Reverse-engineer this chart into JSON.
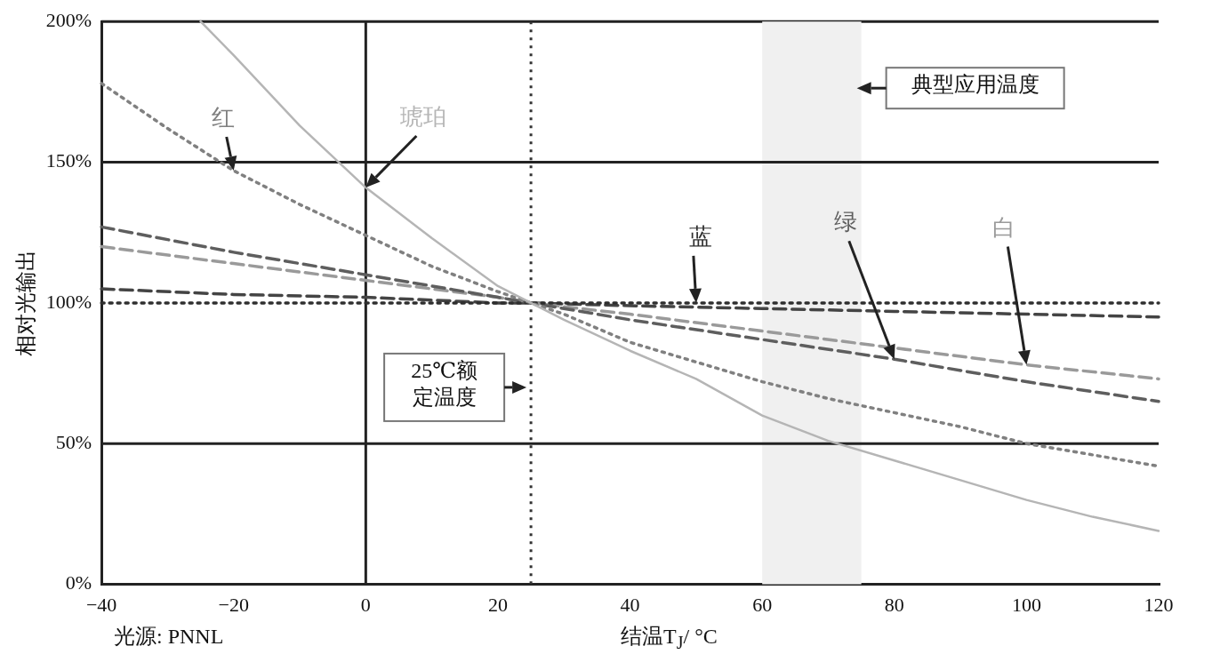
{
  "chart_data": {
    "type": "line",
    "xlabel": "结温T$_{J}$/ °C",
    "ylabel": "相对光输出",
    "xlim": [
      -40,
      120
    ],
    "xticks": [
      {
        "value": -40,
        "label": "−40"
      },
      {
        "value": -20,
        "label": "−20"
      },
      0,
      20,
      40,
      60,
      80,
      100,
      120
    ],
    "ylim": [
      0,
      200
    ],
    "yticks": [
      {
        "value": 0,
        "label": "0%"
      },
      {
        "value": 50,
        "label": "50%"
      },
      {
        "value": 100,
        "label": "100%"
      },
      {
        "value": 150,
        "label": "150%"
      },
      {
        "value": 200,
        "label": "200%"
      }
    ],
    "legend": false,
    "marker": "none",
    "series": [
      {
        "name": "琥珀",
        "color": "#b5b5b5",
        "line_style": "solid",
        "x": [
          -25,
          -20,
          -10,
          0,
          10,
          20,
          25,
          30,
          40,
          50,
          60,
          70,
          80,
          90,
          100,
          110,
          120
        ],
        "values": [
          200,
          188,
          163,
          141,
          123,
          106,
          100,
          94,
          83,
          73,
          60,
          51,
          44,
          37,
          30,
          24,
          19
        ]
      },
      {
        "name": "红",
        "color": "#808080",
        "line_style": "dotted",
        "x": [
          -40,
          -30,
          -20,
          -10,
          0,
          10,
          20,
          30,
          40,
          50,
          60,
          70,
          80,
          90,
          100,
          110,
          120
        ],
        "values": [
          178,
          162,
          147,
          135,
          124,
          113,
          104,
          96,
          86,
          79,
          72,
          66,
          61,
          56,
          50,
          46,
          42
        ]
      },
      {
        "name": "蓝",
        "color": "#2e2e2e",
        "line_style": "dotted",
        "x": [
          -40,
          -30,
          -20,
          -10,
          0,
          10,
          20,
          30,
          40,
          50,
          60,
          70,
          80,
          90,
          100,
          110,
          120
        ],
        "values": [
          100,
          100,
          100,
          100,
          100,
          100,
          100,
          100,
          100,
          100,
          100,
          100,
          100,
          100,
          100,
          100,
          100
        ]
      },
      {
        "name": "绿",
        "color": "#5e5e5e",
        "line_style": "dashed",
        "x": [
          -40,
          -20,
          0,
          20,
          25,
          40,
          60,
          80,
          100,
          120
        ],
        "values": [
          127,
          118,
          110,
          102,
          100,
          94,
          87,
          80,
          72,
          65
        ]
      },
      {
        "name": "白",
        "color": "#9a9a9a",
        "line_style": "dashed",
        "x": [
          -40,
          -20,
          0,
          20,
          25,
          40,
          60,
          80,
          100,
          120
        ],
        "values": [
          120,
          114,
          108,
          102,
          100,
          96,
          90,
          84,
          78,
          73
        ]
      },
      {
        "color": "#444444",
        "line_style": "dashed",
        "x": [
          -40,
          -20,
          0,
          20,
          25,
          40,
          60,
          80,
          100,
          120
        ],
        "values": [
          105,
          103,
          102,
          100,
          100,
          99,
          98,
          97,
          96,
          95
        ]
      }
    ],
    "ref_lines": [
      {
        "axis": "x",
        "value": 0,
        "color": "#222222",
        "line_style": "solid"
      },
      {
        "axis": "y",
        "value": 50,
        "color": "#222222",
        "line_style": "solid"
      },
      {
        "axis": "y",
        "value": 150,
        "color": "#222222",
        "line_style": "solid"
      },
      {
        "axis": "x",
        "value": 25,
        "color": "#333333",
        "line_style": "dotted",
        "label": "25℃额定温度"
      }
    ],
    "bands": [
      {
        "axis": "x",
        "from": 60,
        "to": 75,
        "color": "#f0f0f0",
        "label": "典型应用温度"
      }
    ],
    "annotations": [
      "光源: PNNL"
    ]
  }
}
